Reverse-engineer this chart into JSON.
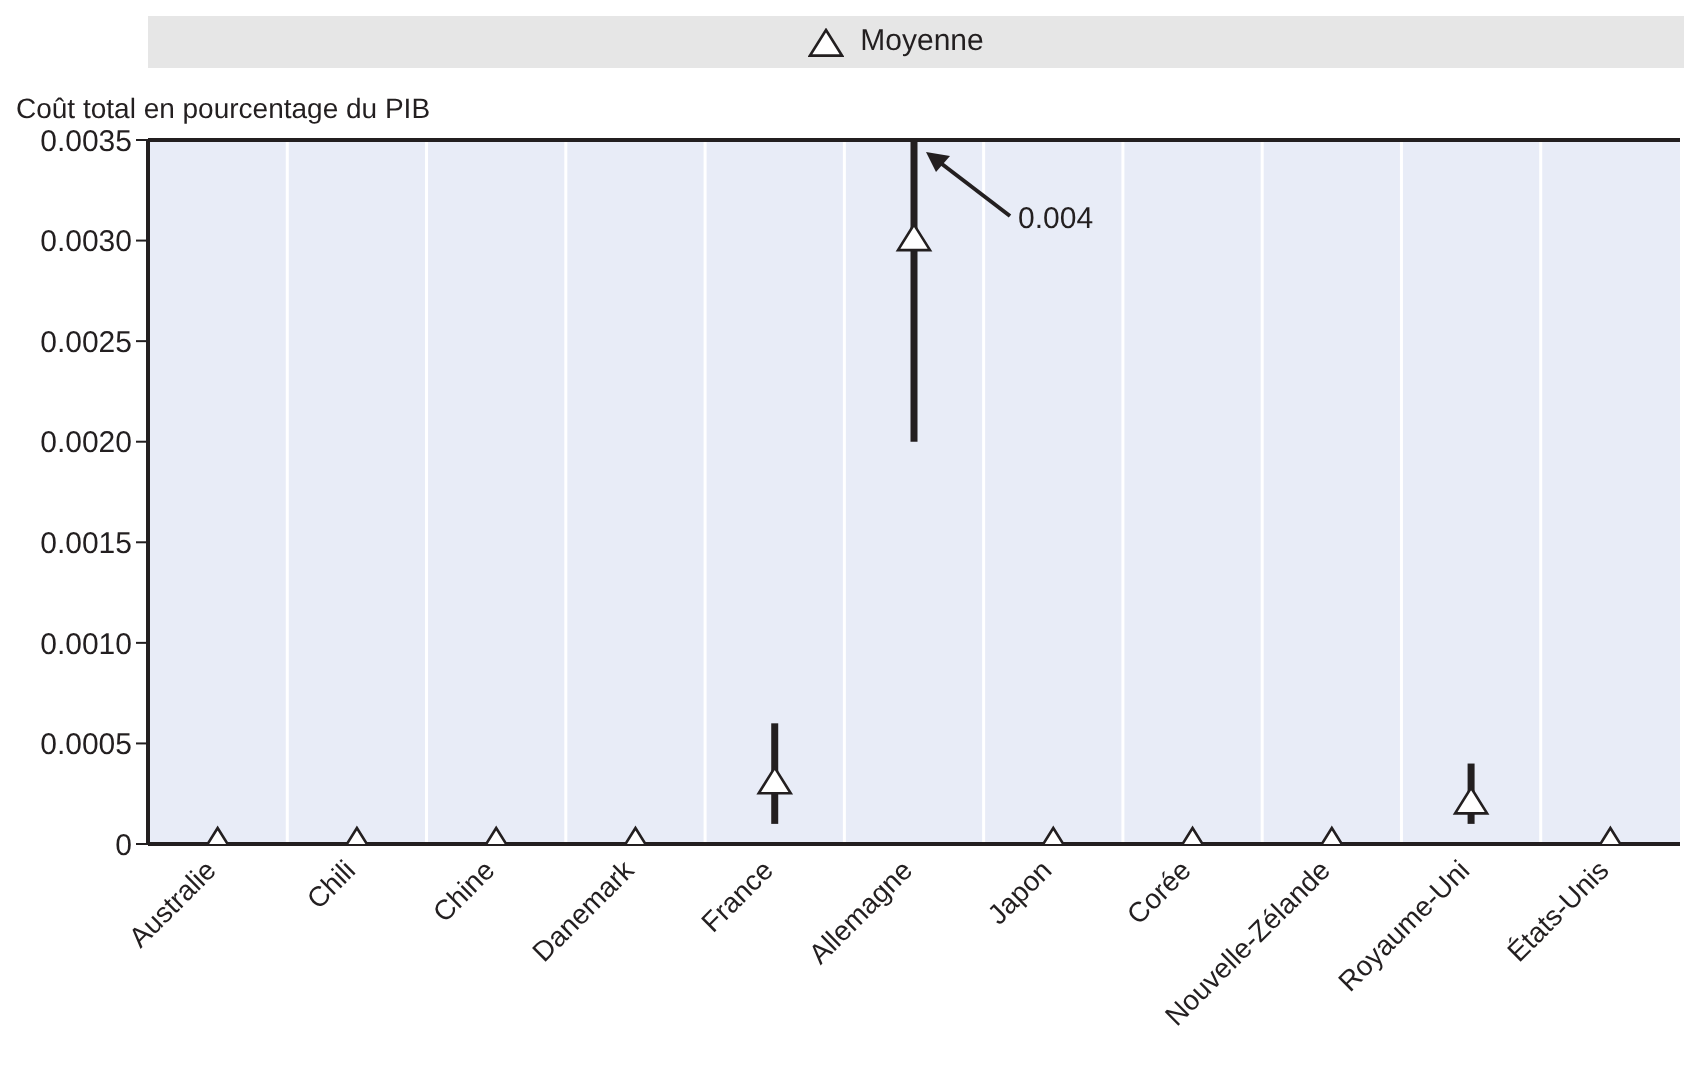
{
  "chart_data": {
    "type": "scatter",
    "ylabel": "Coût total en pourcentage du PIB",
    "categories": [
      "Australie",
      "Chili",
      "Chine",
      "Danemark",
      "France",
      "Allemagne",
      "Japon",
      "Corée",
      "Nouvelle-Zélande",
      "Royaume-Uni",
      "États-Unis"
    ],
    "series": [
      {
        "name": "Moyenne",
        "color": "#231f20",
        "values": [
          0,
          0,
          0,
          0,
          0.0003,
          0.003,
          0,
          0,
          0,
          0.0002,
          0
        ],
        "errors": [
          null,
          null,
          null,
          null,
          [
            0.0001,
            0.0006
          ],
          [
            0.002,
            0.0035
          ],
          null,
          null,
          null,
          [
            0.0001,
            0.0004
          ],
          null
        ]
      }
    ],
    "ylim": [
      0,
      0.0035
    ],
    "yticks": [
      0,
      0.0005,
      {
        "value": 0.001,
        "label": "0.0010"
      },
      0.0015,
      {
        "value": 0.002,
        "label": "0.0020"
      },
      0.0025,
      {
        "value": 0.003,
        "label": "0.0030"
      },
      0.0035
    ],
    "annotations": [
      "0.004"
    ],
    "grid": "x",
    "legend": "top",
    "marker": "triangle"
  }
}
